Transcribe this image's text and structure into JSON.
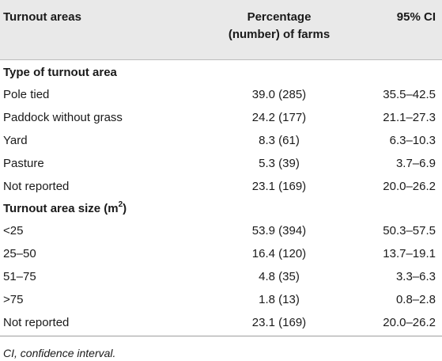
{
  "header": {
    "col1": "Turnout areas",
    "col2_line1": "Percentage",
    "col2_line2": "(number) of farms",
    "col3": "95% CI"
  },
  "sections": [
    {
      "title": "Type of turnout area",
      "title_sup": "",
      "rows": [
        {
          "name": "Pole tied",
          "pct": "39.0 (285)",
          "ci": "35.5–42.5"
        },
        {
          "name": "Paddock without grass",
          "pct": "24.2 (177)",
          "ci": "21.1–27.3"
        },
        {
          "name": "Yard",
          "pct": "8.3 (61)",
          "ci": "6.3–10.3"
        },
        {
          "name": "Pasture",
          "pct": "5.3 (39)",
          "ci": "3.7–6.9"
        },
        {
          "name": "Not reported",
          "pct": "23.1 (169)",
          "ci": "20.0–26.2"
        }
      ]
    },
    {
      "title": "Turnout area size (m",
      "title_sup": "2",
      "title_end": ")",
      "rows": [
        {
          "name": "<25",
          "pct": "53.9 (394)",
          "ci": "50.3–57.5"
        },
        {
          "name": "25–50",
          "pct": "16.4 (120)",
          "ci": "13.7–19.1"
        },
        {
          "name": "51–75",
          "pct": "4.8 (35)",
          "ci": "3.3–6.3"
        },
        {
          "name": ">75",
          "pct": "1.8 (13)",
          "ci": "0.8–2.8"
        },
        {
          "name": "Not reported",
          "pct": "23.1 (169)",
          "ci": "20.0–26.2"
        }
      ]
    }
  ],
  "footnote": "CI, confidence interval."
}
